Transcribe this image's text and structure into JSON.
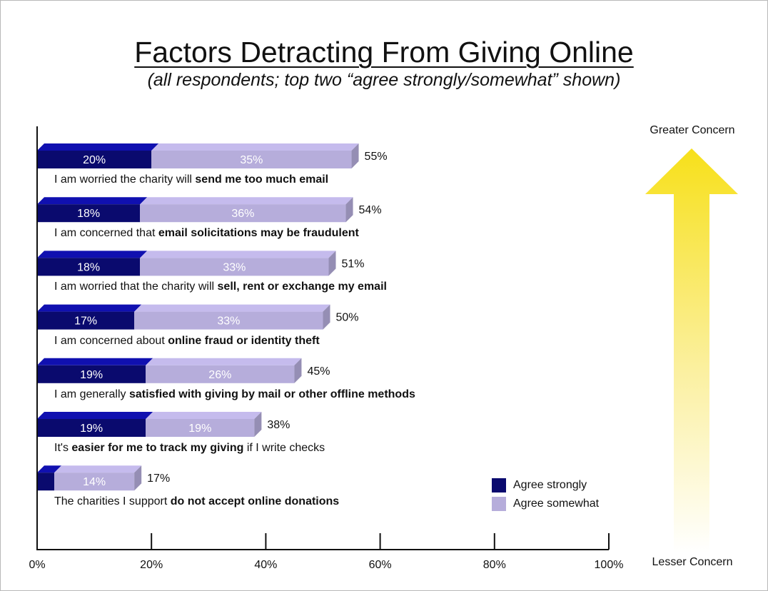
{
  "title": "Factors Detracting From Giving Online",
  "subtitle": "(all respondents; top two “agree strongly/somewhat” shown)",
  "arrow": {
    "top_label": "Greater Concern",
    "bottom_label": "Lesser Concern"
  },
  "colors": {
    "agree_strongly": "#0a0a6e",
    "agree_somewhat": "#b6addb",
    "arrow_top": "#f7e01a"
  },
  "chart_data": {
    "type": "bar",
    "orientation": "horizontal",
    "stacked": true,
    "title": "Factors Detracting From Giving Online",
    "subtitle": "(all respondents; top two “agree strongly/somewhat” shown)",
    "xlim": [
      0,
      100
    ],
    "x_ticks": [
      "0%",
      "20%",
      "40%",
      "60%",
      "80%",
      "100%"
    ],
    "grid": false,
    "legend_position": "bottom-right",
    "categories": [
      {
        "pre": "I am worried the charity will ",
        "bold": "send me too much email",
        "post": ""
      },
      {
        "pre": "I am concerned that ",
        "bold": "email solicitations may be fraudulent",
        "post": ""
      },
      {
        "pre": "I am worried that the charity will ",
        "bold": "sell, rent or exchange my email",
        "post": ""
      },
      {
        "pre": "I am concerned about ",
        "bold": "online fraud or identity theft",
        "post": ""
      },
      {
        "pre": "I am generally ",
        "bold": "satisfied with giving by mail or other offline methods",
        "post": ""
      },
      {
        "pre": "It's ",
        "bold": "easier for me to track my giving",
        "post": " if I write checks"
      },
      {
        "pre": "The charities I support ",
        "bold": "do not accept online donations",
        "post": ""
      }
    ],
    "series": [
      {
        "name": "Agree strongly",
        "values": [
          20,
          18,
          18,
          17,
          19,
          19,
          3
        ],
        "labels": [
          "20%",
          "18%",
          "18%",
          "17%",
          "19%",
          "19%",
          ""
        ]
      },
      {
        "name": "Agree somewhat",
        "values": [
          35,
          36,
          33,
          33,
          26,
          19,
          14
        ],
        "labels": [
          "35%",
          "36%",
          "33%",
          "33%",
          "26%",
          "19%",
          "14%"
        ]
      }
    ],
    "totals": [
      "55%",
      "54%",
      "51%",
      "50%",
      "45%",
      "38%",
      "17%"
    ]
  }
}
